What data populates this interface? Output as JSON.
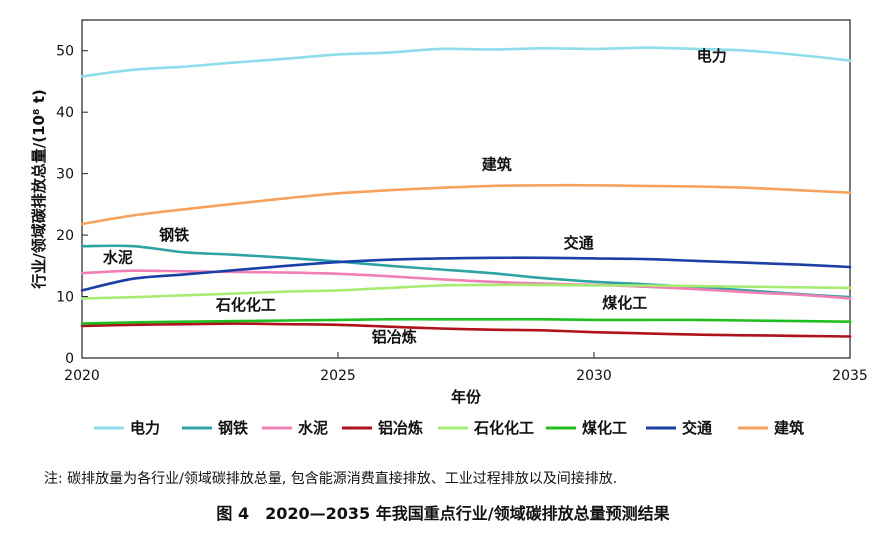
{
  "chart_data": {
    "type": "line",
    "title": "",
    "xlabel": "年份",
    "ylabel": "行业/领域碳排放总量/(10⁸ t)",
    "xlim": [
      2020,
      2035
    ],
    "ylim": [
      0,
      55
    ],
    "xticks": [
      2020,
      2025,
      2030,
      2035
    ],
    "yticks": [
      0,
      10,
      20,
      30,
      40,
      50
    ],
    "grid": false,
    "legend": "bottom",
    "x": [
      2020,
      2021,
      2022,
      2023,
      2024,
      2025,
      2026,
      2027,
      2028,
      2029,
      2030,
      2031,
      2032,
      2033,
      2034,
      2035
    ],
    "series": [
      {
        "name": "电力",
        "color": "#8fdcec",
        "values": [
          45.8,
          46.9,
          47.4,
          48.1,
          48.7,
          49.4,
          49.7,
          50.3,
          50.2,
          50.4,
          50.3,
          50.5,
          50.3,
          50.0,
          49.3,
          48.4
        ]
      },
      {
        "name": "钢铁",
        "color": "#2ea3a3",
        "values": [
          18.2,
          18.2,
          17.2,
          16.8,
          16.3,
          15.7,
          15.0,
          14.4,
          13.8,
          13.0,
          12.4,
          12.0,
          11.5,
          11.0,
          10.4,
          9.9
        ]
      },
      {
        "name": "水泥",
        "color": "#f080b4",
        "values": [
          13.8,
          14.2,
          14.1,
          14.0,
          13.9,
          13.7,
          13.3,
          12.8,
          12.4,
          12.1,
          11.9,
          11.6,
          11.2,
          10.7,
          10.3,
          9.7
        ]
      },
      {
        "name": "铝冶炼",
        "color": "#b0121c",
        "values": [
          5.2,
          5.4,
          5.5,
          5.6,
          5.5,
          5.4,
          5.1,
          4.8,
          4.6,
          4.5,
          4.2,
          4.0,
          3.8,
          3.7,
          3.6,
          3.5
        ]
      },
      {
        "name": "石化化工",
        "color": "#a6ec72",
        "values": [
          9.7,
          9.9,
          10.2,
          10.5,
          10.8,
          11.0,
          11.4,
          11.8,
          11.9,
          11.9,
          11.8,
          11.8,
          11.7,
          11.6,
          11.5,
          11.4
        ]
      },
      {
        "name": "煤化工",
        "color": "#1fbf1f",
        "values": [
          5.6,
          5.8,
          5.9,
          6.0,
          6.1,
          6.2,
          6.3,
          6.3,
          6.3,
          6.3,
          6.2,
          6.2,
          6.2,
          6.1,
          6.0,
          5.9
        ]
      },
      {
        "name": "交通",
        "color": "#1a3fa6",
        "values": [
          11.0,
          12.9,
          13.6,
          14.3,
          15.0,
          15.6,
          16.0,
          16.2,
          16.3,
          16.3,
          16.2,
          16.1,
          15.8,
          15.5,
          15.2,
          14.8
        ]
      },
      {
        "name": "建筑",
        "color": "#f6a25c",
        "values": [
          21.8,
          23.2,
          24.2,
          25.1,
          26.0,
          26.8,
          27.3,
          27.7,
          28.0,
          28.1,
          28.1,
          28.0,
          27.9,
          27.7,
          27.3,
          26.9
        ]
      }
    ]
  },
  "note": "注: 碳排放量为各行业/领域碳排放总量, 包含能源消费直接排放、工业过程排放以及间接排放.",
  "caption": "图 4　2020—2035 年我国重点行业/领域碳排放总量预测结果"
}
